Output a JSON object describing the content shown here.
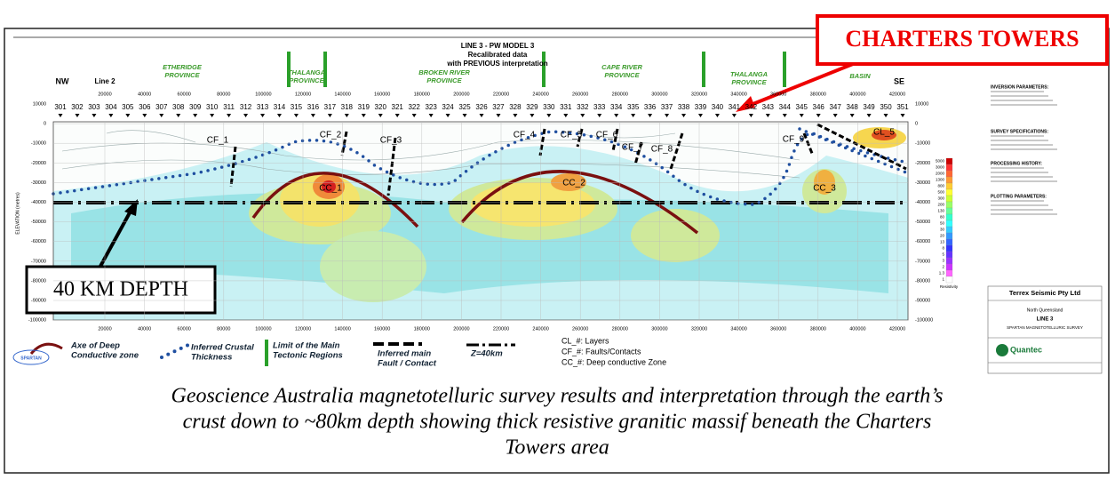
{
  "header": {
    "title": "LINE 3 - PW MODEL 3",
    "lines": [
      "Recalibrated data",
      "with PREVIOUS interpretation"
    ]
  },
  "directions": [
    "NW",
    "SE"
  ],
  "line_marker": "Line 2",
  "provinces": [
    [
      "ETHERIDGE",
      "PROVINCE"
    ],
    [
      "THALANGA",
      "PROVINCE"
    ],
    [
      "BROKEN RIVER",
      "PROVINCE"
    ],
    [
      "CAPE RIVER",
      "PROVINCE"
    ],
    [
      "THALANGA",
      "PROVINCE"
    ],
    [
      "BASIN"
    ]
  ],
  "stations": [
    "301",
    "302",
    "303",
    "304",
    "305",
    "306",
    "307",
    "308",
    "309",
    "310",
    "311",
    "312",
    "313",
    "314",
    "315",
    "316",
    "317",
    "318",
    "319",
    "320",
    "321",
    "322",
    "323",
    "324",
    "325",
    "326",
    "327",
    "328",
    "329",
    "330",
    "331",
    "332",
    "333",
    "334",
    "335",
    "336",
    "337",
    "338",
    "339",
    "340",
    "341",
    "342",
    "343",
    "344",
    "345",
    "346",
    "347",
    "348",
    "349",
    "350",
    "351"
  ],
  "x_ticks": [
    "20000",
    "40000",
    "60000",
    "80000",
    "100000",
    "120000",
    "140000",
    "160000",
    "180000",
    "200000",
    "220000",
    "240000",
    "260000",
    "280000",
    "300000",
    "320000",
    "340000",
    "360000",
    "380000",
    "400000",
    "420000"
  ],
  "y_ticks": [
    "10000",
    "0",
    "-10000",
    "-20000",
    "-30000",
    "-40000",
    "-50000",
    "-60000",
    "-70000",
    "-80000",
    "-90000",
    "-100000"
  ],
  "y_axis_title": "ELEVATION (metres)",
  "faults": [
    "CF_1",
    "CF_2",
    "CF_3",
    "CF_4",
    "CF_5",
    "CF_6",
    "CF_7",
    "CF_8",
    "CF_9"
  ],
  "conductors": [
    "CC_1",
    "CC_2",
    "CC_3"
  ],
  "layers": [
    "CL_5"
  ],
  "legend": [
    [
      "Axe of Deep",
      "Conductive zone"
    ],
    [
      "Inferred Crustal",
      "Thickness"
    ],
    [
      "Limit of the Main",
      "Tectonic Regions"
    ],
    [
      "Inferred main",
      "Fault / Contact"
    ],
    [
      "Z=40km"
    ]
  ],
  "notes": [
    "CL_#: Layers",
    "CF_#: Faults/Contacts",
    "CC_#: Deep conductive Zone"
  ],
  "logo": "SPARTAN",
  "side_panel": {
    "sections": [
      "INVERSION PARAMETERS:",
      "SURVEY SPECIFICATIONS:",
      "PROCESSING HISTORY:",
      "PLOTTING PARAMETERS:"
    ],
    "scale_values": [
      "5000",
      "3000",
      "2000",
      "1300",
      "800",
      "500",
      "300",
      "200",
      "130",
      "80",
      "50",
      "30",
      "20",
      "13",
      "8",
      "5",
      "3",
      "2",
      "1.3",
      "1"
    ],
    "scale_title": "Resistivity",
    "company": "Terrex Seismic Pty Ltd",
    "region": "North Queensland",
    "line": "LINE 3",
    "survey": "SPARTAN MAGNETOTELLURIC SURVEY",
    "contractor": "Quantec"
  },
  "callouts": {
    "town": "CHARTERS TOWERS",
    "depth": "40 KM DEPTH"
  },
  "caption": [
    "Geoscience Australia magnetotelluric survey results and interpretation through the earth’s",
    "crust down to ~80km depth showing thick resistive granitic massif beneath the Charters",
    "Towers area"
  ]
}
